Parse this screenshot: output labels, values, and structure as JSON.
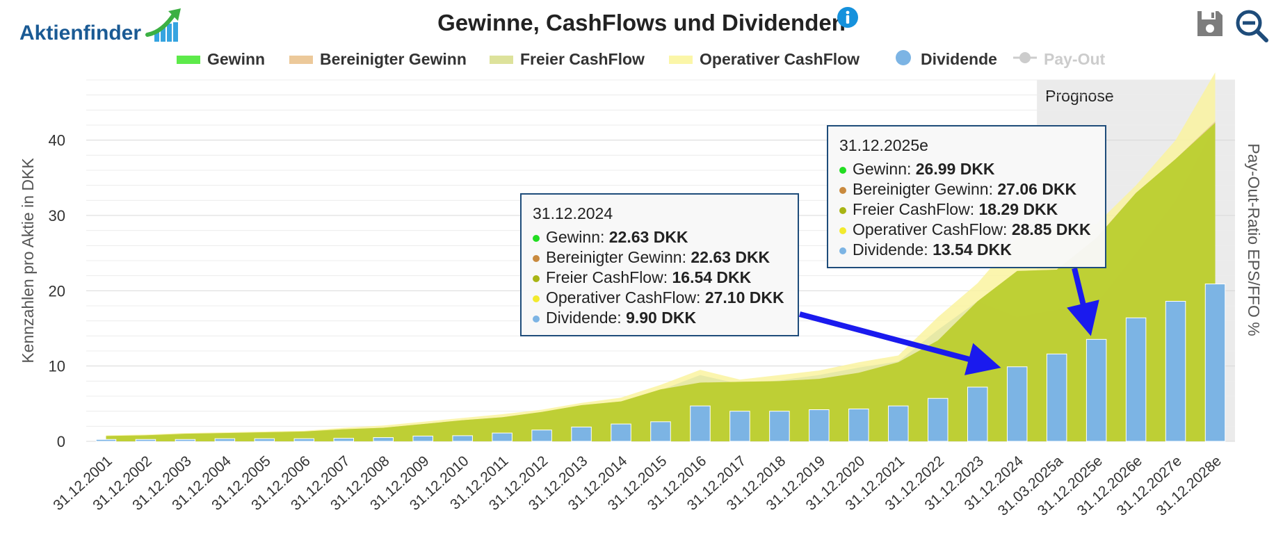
{
  "logo": {
    "text": "Aktienfinder"
  },
  "header": {
    "title": "Gewinne, CashFlows und Dividenden",
    "info_icon": "info-icon",
    "save_icon": "save-icon",
    "zoom_icon": "zoom-icon"
  },
  "legend": [
    {
      "label": "Gewinn",
      "color": "#5dea4a",
      "shape": "area",
      "enabled": true
    },
    {
      "label": "Bereinigter Gewinn",
      "color": "#ecc99a",
      "shape": "area",
      "enabled": true
    },
    {
      "label": "Freier CashFlow",
      "color": "#dde29b",
      "shape": "area",
      "enabled": true
    },
    {
      "label": "Operativer CashFlow",
      "color": "#fbf6a8",
      "shape": "area",
      "enabled": true
    },
    {
      "label": "Dividende",
      "color": "#7cb4e4",
      "shape": "circle",
      "enabled": true
    },
    {
      "label": "Pay-Out",
      "color": "#cccccc",
      "shape": "line-marker",
      "enabled": false
    }
  ],
  "chart_data": {
    "type": "bar+area",
    "title": "Gewinne, CashFlows und Dividenden",
    "ylabel_left": "Kennzahlen pro Aktie in DKK",
    "ylabel_right": "Pay-Out-Ratio EPS/FFO %",
    "yticks": [
      0,
      10,
      20,
      30,
      40
    ],
    "ylim": [
      0,
      48
    ],
    "grid": true,
    "forecast_label": "Prognose",
    "forecast_start_index": 24,
    "categories": [
      "31.12.2001",
      "31.12.2002",
      "31.12.2003",
      "31.12.2004",
      "31.12.2005",
      "31.12.2006",
      "31.12.2007",
      "31.12.2008",
      "31.12.2009",
      "31.12.2010",
      "31.12.2011",
      "31.12.2012",
      "31.12.2013",
      "31.12.2014",
      "31.12.2015",
      "31.12.2016",
      "31.12.2017",
      "31.12.2018",
      "31.12.2019",
      "31.12.2020",
      "31.12.2021",
      "31.12.2022",
      "31.12.2023",
      "31.12.2024",
      "31.03.2025a",
      "31.12.2025e",
      "31.12.2026e",
      "31.12.2027e",
      "31.12.2028e"
    ],
    "series": [
      {
        "name": "Operativer CashFlow",
        "type": "area",
        "color": "#faf3a0",
        "values": [
          0.8,
          0.9,
          1.1,
          1.2,
          1.3,
          1.4,
          1.8,
          2.1,
          2.6,
          3.1,
          3.6,
          4.2,
          5.1,
          5.8,
          7.5,
          9.5,
          8.2,
          8.8,
          9.4,
          10.5,
          11.4,
          16.5,
          21.0,
          27.1,
          28.5,
          28.85,
          34.0,
          40.0,
          49.0
        ]
      },
      {
        "name": "Freier CashFlow",
        "type": "area",
        "color": "#e3e6a6",
        "values": [
          0.6,
          0.7,
          0.9,
          1.0,
          1.1,
          1.2,
          1.5,
          1.8,
          2.3,
          2.8,
          3.2,
          3.8,
          4.6,
          5.3,
          6.8,
          8.8,
          7.6,
          8.1,
          8.8,
          9.8,
          10.6,
          14.8,
          18.6,
          16.54,
          17.5,
          18.29,
          25.0,
          32.0,
          42.0
        ]
      },
      {
        "name": "Bereinigter Gewinn",
        "type": "area",
        "color": "#e6c690",
        "values": [
          0.7,
          0.8,
          1.0,
          1.1,
          1.2,
          1.3,
          1.6,
          1.8,
          2.3,
          2.8,
          3.2,
          3.9,
          4.8,
          5.3,
          6.9,
          7.8,
          7.9,
          8.0,
          8.3,
          9.1,
          10.5,
          13.4,
          18.6,
          22.63,
          22.8,
          27.06,
          33.0,
          37.5,
          42.5
        ]
      },
      {
        "name": "Gewinn",
        "type": "area",
        "color": "#b6d024",
        "values": [
          0.7,
          0.8,
          1.0,
          1.1,
          1.2,
          1.3,
          1.6,
          1.8,
          2.3,
          2.8,
          3.2,
          3.9,
          4.8,
          5.3,
          6.9,
          7.8,
          7.9,
          8.0,
          8.3,
          9.1,
          10.5,
          13.4,
          18.6,
          22.63,
          22.8,
          26.99,
          33.0,
          37.5,
          42.3
        ]
      },
      {
        "name": "Dividende",
        "type": "bar",
        "color": "#7cb4e4",
        "values": [
          0.25,
          0.25,
          0.25,
          0.35,
          0.35,
          0.35,
          0.4,
          0.5,
          0.7,
          0.75,
          1.1,
          1.5,
          1.9,
          2.3,
          2.6,
          4.7,
          4.0,
          4.0,
          4.2,
          4.3,
          4.7,
          5.7,
          7.2,
          9.9,
          11.6,
          13.54,
          16.4,
          18.6,
          20.9
        ]
      }
    ],
    "tooltips": [
      {
        "date": "31.12.2024",
        "rows": [
          {
            "label": "Gewinn: ",
            "value": "22.63 DKK",
            "color": "#22dd22"
          },
          {
            "label": "Bereinigter Gewinn: ",
            "value": "22.63 DKK",
            "color": "#c98a3e"
          },
          {
            "label": "Freier CashFlow: ",
            "value": "16.54 DKK",
            "color": "#a8b414"
          },
          {
            "label": "Operativer CashFlow: ",
            "value": "27.10 DKK",
            "color": "#f2ea2e"
          },
          {
            "label": "Dividende: ",
            "value": "9.90 DKK",
            "color": "#7cb4e4"
          }
        ]
      },
      {
        "date": "31.12.2025e",
        "rows": [
          {
            "label": "Gewinn: ",
            "value": "26.99 DKK",
            "color": "#22dd22"
          },
          {
            "label": "Bereinigter Gewinn: ",
            "value": "27.06 DKK",
            "color": "#c98a3e"
          },
          {
            "label": "Freier CashFlow: ",
            "value": "18.29 DKK",
            "color": "#a8b414"
          },
          {
            "label": "Operativer CashFlow: ",
            "value": "28.85 DKK",
            "color": "#f2ea2e"
          },
          {
            "label": "Dividende: ",
            "value": "13.54 DKK",
            "color": "#7cb4e4"
          }
        ]
      }
    ]
  }
}
